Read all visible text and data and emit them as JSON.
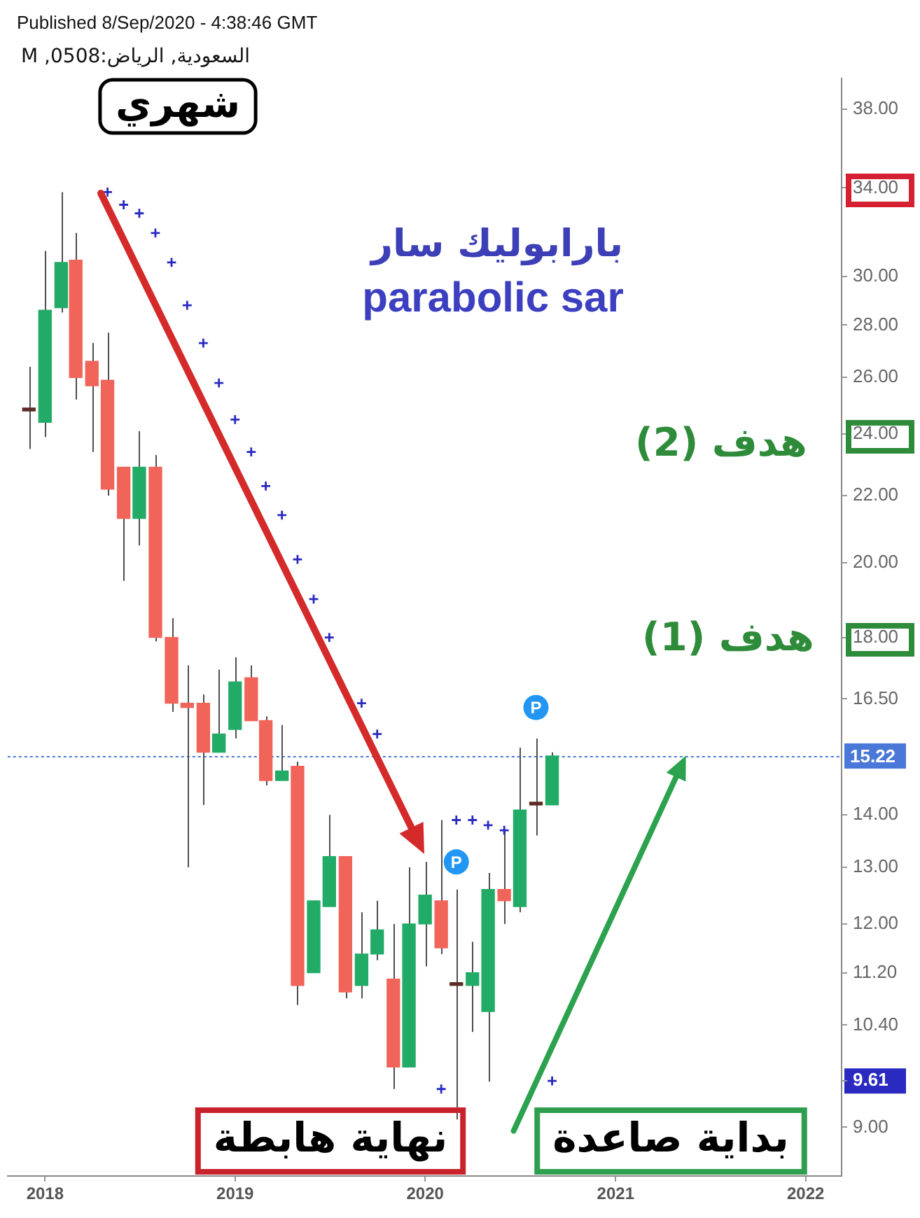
{
  "chart_data": {
    "type": "candlestick",
    "title": "السعودية, الرياض:0508, M",
    "annotations": [
      "Published 8/Sep/2020 - 4:38:46 GMT",
      "شهري",
      "بارابوليك سار",
      "parabolic sar",
      "هدف (2)",
      "هدف (1)",
      {
        "text": "P",
        "x": "2020-03",
        "y": 13.1
      },
      {
        "text": "P",
        "x": "2020-08",
        "y": 16.3
      },
      "نهاية هابطة",
      "بداية صاعدة"
    ],
    "x": [
      "2017-12",
      "2018-01",
      "2018-02",
      "2018-03",
      "2018-04",
      "2018-05",
      "2018-06",
      "2018-07",
      "2018-08",
      "2018-09",
      "2018-10",
      "2018-11",
      "2018-12",
      "2019-01",
      "2019-02",
      "2019-03",
      "2019-04",
      "2019-05",
      "2019-06",
      "2019-07",
      "2019-08",
      "2019-09",
      "2019-10",
      "2019-11",
      "2019-12",
      "2020-01",
      "2020-02",
      "2020-03",
      "2020-04",
      "2020-05",
      "2020-06",
      "2020-07",
      "2020-08",
      "2020-09"
    ],
    "ohlc": [
      [
        24.8,
        26.4,
        23.5,
        24.8
      ],
      [
        24.4,
        31.1,
        23.9,
        28.6
      ],
      [
        28.7,
        33.8,
        28.5,
        30.6
      ],
      [
        30.7,
        31.9,
        25.2,
        26.0
      ],
      [
        26.6,
        27.3,
        23.4,
        25.7
      ],
      [
        25.9,
        27.7,
        22.0,
        22.2
      ],
      [
        22.9,
        22.9,
        19.5,
        21.3
      ],
      [
        21.3,
        24.1,
        20.5,
        22.9
      ],
      [
        22.9,
        23.3,
        17.9,
        18.0
      ],
      [
        18.0,
        18.5,
        16.2,
        16.4
      ],
      [
        16.4,
        17.3,
        13.0,
        16.3
      ],
      [
        16.4,
        16.6,
        14.2,
        15.3
      ],
      [
        15.3,
        17.2,
        15.3,
        15.7
      ],
      [
        15.8,
        17.5,
        15.6,
        16.9
      ],
      [
        17.0,
        17.3,
        16.0,
        16.0
      ],
      [
        16.0,
        16.1,
        14.6,
        14.7
      ],
      [
        14.7,
        15.9,
        14.7,
        14.9
      ],
      [
        15.0,
        15.1,
        10.7,
        11.0
      ],
      [
        11.2,
        12.4,
        11.2,
        12.4
      ],
      [
        12.3,
        14.0,
        12.3,
        13.2
      ],
      [
        13.2,
        13.2,
        10.8,
        10.9
      ],
      [
        11.0,
        12.2,
        10.8,
        11.5
      ],
      [
        11.5,
        12.4,
        11.4,
        11.9
      ],
      [
        11.1,
        12.0,
        9.5,
        9.8
      ],
      [
        9.8,
        13.0,
        9.8,
        12.0
      ],
      [
        12.0,
        13.1,
        11.3,
        12.5
      ],
      [
        12.4,
        13.9,
        11.5,
        11.6
      ],
      [
        11.0,
        12.6,
        9.1,
        11.0
      ],
      [
        11.0,
        11.7,
        10.3,
        11.2
      ],
      [
        10.6,
        12.9,
        9.6,
        12.6
      ],
      [
        12.6,
        13.7,
        12.0,
        12.4
      ],
      [
        12.3,
        15.4,
        12.2,
        14.1
      ],
      [
        14.2,
        15.6,
        13.6,
        14.2
      ],
      [
        14.2,
        15.3,
        14.2,
        15.22
      ]
    ],
    "colors": [
      "#5a2a24",
      "#22ab67",
      "#22ab67",
      "#f0645a",
      "#f0645a",
      "#f0645a",
      "#f0645a",
      "#22ab67",
      "#f0645a",
      "#f0645a",
      "#f0645a",
      "#f0645a",
      "#22ab67",
      "#22ab67",
      "#f0645a",
      "#f0645a",
      "#22ab67",
      "#f0645a",
      "#22ab67",
      "#22ab67",
      "#f0645a",
      "#22ab67",
      "#22ab67",
      "#f0645a",
      "#22ab67",
      "#22ab67",
      "#f0645a",
      "#5a2a24",
      "#22ab67",
      "#22ab67",
      "#f0645a",
      "#22ab67",
      "#5a2a24",
      "#22ab67"
    ],
    "series": [
      {
        "type": "scatter",
        "color": "#2a2ac0",
        "marker": "cross",
        "values": [
          null,
          null,
          null,
          null,
          null,
          33.8,
          33.2,
          32.8,
          31.9,
          30.6,
          28.8,
          27.3,
          25.8,
          24.5,
          23.4,
          22.3,
          21.4,
          20.1,
          19.0,
          18.0,
          null,
          16.4,
          15.7,
          null,
          null,
          null,
          9.5,
          13.9,
          13.9,
          13.8,
          13.7,
          null,
          null,
          9.61
        ]
      }
    ],
    "xlim": [
      "2017-10-21",
      "2022-03-11"
    ],
    "xticks": [
      "2018",
      "2019",
      "2020",
      "2021",
      "2022"
    ],
    "ylim": [
      8.4,
      39.7
    ],
    "yticks": [
      {
        "value": 9,
        "label": "9.00"
      },
      {
        "value": 9.61,
        "label": "9.61"
      },
      {
        "value": 10.4,
        "label": "10.40"
      },
      {
        "value": 11.2,
        "label": "11.20"
      },
      {
        "value": 12,
        "label": "12.00"
      },
      {
        "value": 13,
        "label": "13.00"
      },
      {
        "value": 14,
        "label": "14.00"
      },
      {
        "value": 16.5,
        "label": "16.50"
      },
      {
        "value": 18,
        "label": "18.00"
      },
      {
        "value": 20,
        "label": "20.00"
      },
      {
        "value": 22,
        "label": "22.00"
      },
      {
        "value": 24,
        "label": "24.00"
      },
      {
        "value": 26,
        "label": "26.00"
      },
      {
        "value": 28,
        "label": "28.00"
      },
      {
        "value": 30,
        "label": "30.00"
      },
      {
        "value": 34,
        "label": "34.00"
      },
      {
        "value": 38,
        "label": "38.00"
      }
    ],
    "log": true,
    "ref_lines": [
      {
        "axis": "y",
        "value": 15.22,
        "label": "15.22",
        "color": "#4a78d8",
        "line_style": "dotted"
      }
    ]
  }
}
